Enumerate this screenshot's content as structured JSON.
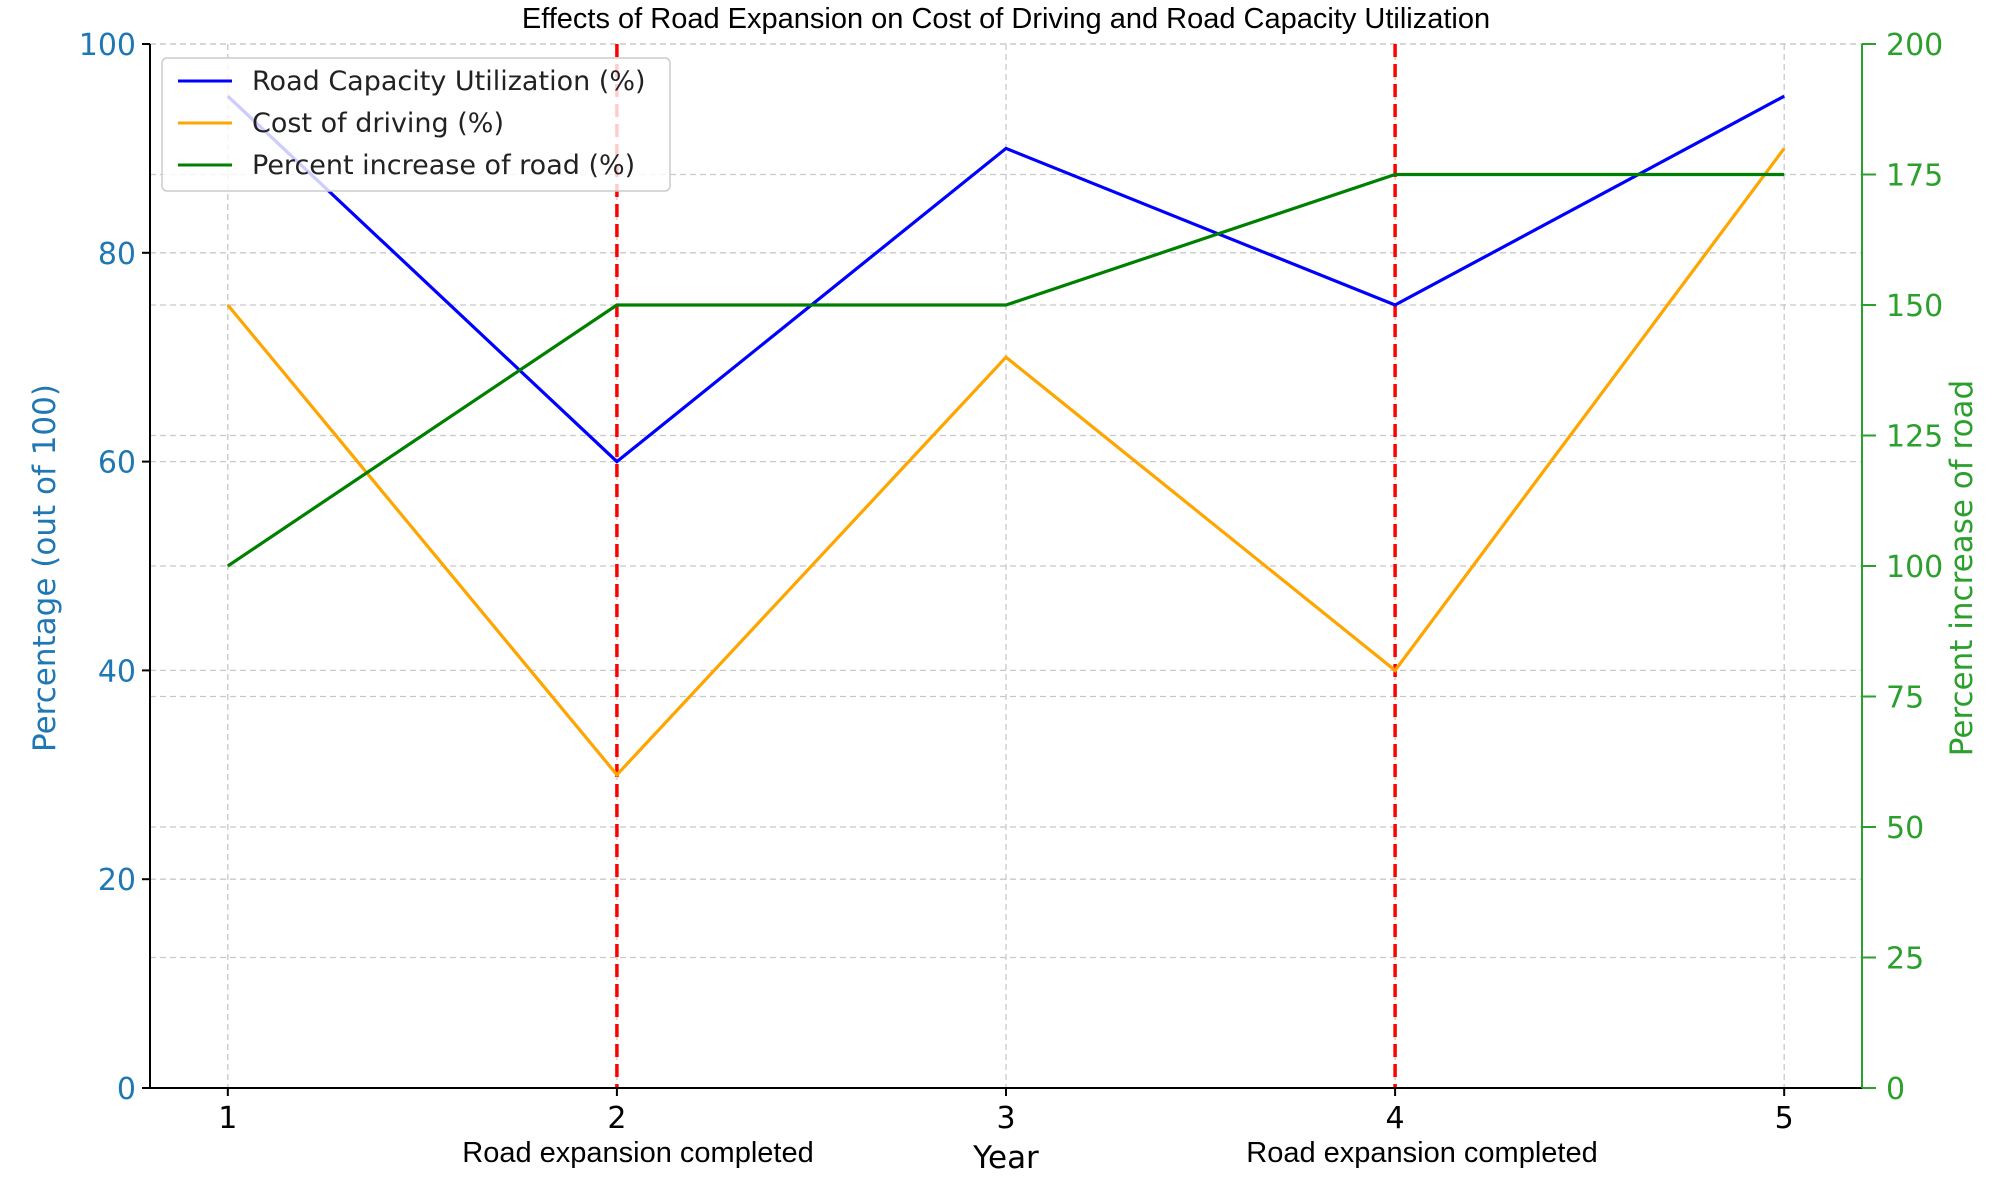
{
  "chart_data": {
    "type": "line",
    "title": "Effects of Road Expansion on Cost of Driving and Road Capacity Utilization",
    "xlabel": "Year",
    "ylabel_left": "Percentage (out of 100)",
    "ylabel_right": "Percent increase of road",
    "x": [
      1,
      2,
      3,
      4,
      5
    ],
    "x_ticks": [
      "1",
      "2",
      "3",
      "4",
      "5"
    ],
    "ylim_left": [
      0,
      100
    ],
    "ylim_right": [
      0,
      200
    ],
    "y_ticks_left": [
      "0",
      "20",
      "40",
      "60",
      "80",
      "100"
    ],
    "y_ticks_right": [
      "0",
      "25",
      "50",
      "75",
      "100",
      "125",
      "150",
      "175",
      "200"
    ],
    "grid": true,
    "legend_position": "top-left",
    "series": [
      {
        "name": "Road Capacity Utilization (%)",
        "axis": "left",
        "color": "#0000ff",
        "values": [
          95,
          60,
          90,
          75,
          95
        ]
      },
      {
        "name": "Cost of driving (%)",
        "axis": "left",
        "color": "#ffa500",
        "values": [
          75,
          30,
          70,
          40,
          90
        ]
      },
      {
        "name": "Percent increase of road (%)",
        "axis": "right",
        "color": "#008000",
        "values": [
          100,
          150,
          150,
          175,
          175
        ]
      }
    ],
    "annotations": [
      {
        "x": 2,
        "label": "Road expansion completed",
        "color": "#ff0000"
      },
      {
        "x": 4,
        "label": "Road expansion completed",
        "color": "#ff0000"
      }
    ],
    "colors": {
      "left_axis": "#1f77b4",
      "right_axis": "#2ca02c"
    }
  }
}
